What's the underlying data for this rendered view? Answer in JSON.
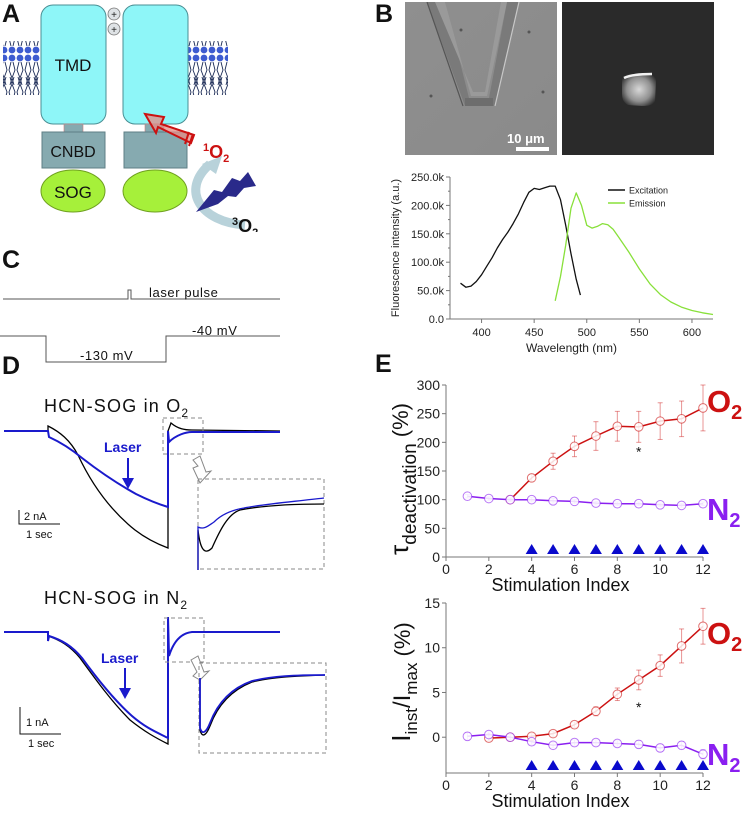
{
  "panels": {
    "A": {
      "letter": "A",
      "tmd_label": "TMD",
      "cnbd_label": "CNBD",
      "sog_label": "SOG",
      "plus_symbols": [
        "+",
        "+"
      ],
      "singlet_oxygen": {
        "sup": "1",
        "main": "O",
        "sub": "2"
      },
      "triplet_oxygen": {
        "sup": "3",
        "main": "O",
        "sub": "2"
      },
      "colors": {
        "tmd": "#8ef6f8",
        "cnbd": "#86aab0",
        "sog": "#a6f03a",
        "singlet": "#dd1111",
        "bolt": "#2a2a8a",
        "lipid": "#3d5bd0"
      }
    },
    "B": {
      "letter": "B",
      "scale_bar_label": "10 μm"
    },
    "C": {
      "letter": "C",
      "laser_label": "laser pulse",
      "hold_label": "-130 mV",
      "step_label": "-40 mV"
    },
    "D": {
      "letter": "D",
      "top": {
        "title": {
          "main": "HCN-SOG in O",
          "sub": "2"
        },
        "laser_label": "Laser",
        "scale_y": "2 nA",
        "scale_x": "1 sec"
      },
      "bottom": {
        "title": {
          "main": "HCN-SOG in N",
          "sub": "2"
        },
        "laser_label": "Laser",
        "scale_y": "1 nA",
        "scale_x": "1 sec"
      },
      "colors": {
        "control": "#000000",
        "laser": "#1a1acc"
      }
    },
    "E": {
      "letter": "E",
      "o2_label": {
        "main": "O",
        "sub": "2"
      },
      "n2_label": {
        "main": "N",
        "sub": "2"
      },
      "significance_mark": "*",
      "colors": {
        "o2": "#cc1111",
        "n2": "#8a1ff0",
        "stim": "#0a0acc"
      }
    }
  },
  "chart_data": [
    {
      "id": "B-spectrum",
      "type": "line",
      "title": "",
      "xlabel": "Wavelength (nm)",
      "ylabel": "Fluorescence intensity (a.u.)",
      "xlim": [
        370,
        620
      ],
      "ylim": [
        0,
        250000
      ],
      "xticks": [
        400,
        450,
        500,
        550,
        600
      ],
      "xtick_labels": [
        "400",
        "450",
        "500",
        "550",
        "600"
      ],
      "yticks": [
        0,
        50000,
        100000,
        150000,
        200000,
        250000
      ],
      "ytick_labels": [
        "0.0",
        "50.0k",
        "100.0k",
        "150.0k",
        "200.0k",
        "250.0k"
      ],
      "legend_position": "top-right",
      "series": [
        {
          "name": "Excitation",
          "color": "#111111",
          "x": [
            380,
            385,
            390,
            395,
            400,
            405,
            410,
            415,
            420,
            425,
            430,
            435,
            440,
            445,
            450,
            455,
            460,
            465,
            470,
            475,
            480,
            485,
            490,
            494
          ],
          "y": [
            63000,
            56000,
            58000,
            66000,
            78000,
            93000,
            108000,
            125000,
            140000,
            153000,
            168000,
            185000,
            205000,
            223000,
            230000,
            228000,
            231000,
            234000,
            234000,
            210000,
            165000,
            115000,
            70000,
            42000
          ]
        },
        {
          "name": "Emission",
          "color": "#88e03a",
          "x": [
            470,
            475,
            480,
            485,
            490,
            495,
            500,
            505,
            510,
            515,
            520,
            525,
            530,
            540,
            550,
            560,
            570,
            580,
            590,
            600,
            610,
            620
          ],
          "y": [
            32000,
            75000,
            130000,
            195000,
            222000,
            200000,
            165000,
            160000,
            163000,
            168000,
            166000,
            158000,
            145000,
            118000,
            88000,
            62000,
            43000,
            30000,
            21000,
            15000,
            11000,
            8000
          ]
        }
      ]
    },
    {
      "id": "E-tau",
      "type": "line",
      "title": "",
      "xlabel": "Stimulation Index",
      "ylabel": {
        "main": "τ",
        "sub": "deactivation",
        "unit": "(%)"
      },
      "xlim": [
        0,
        12
      ],
      "ylim": [
        0,
        300
      ],
      "xticks": [
        0,
        2,
        4,
        6,
        8,
        10,
        12
      ],
      "xtick_labels": [
        "0",
        "2",
        "4",
        "6",
        "8",
        "10",
        "12"
      ],
      "yticks": [
        0,
        50,
        100,
        150,
        200,
        250,
        300
      ],
      "ytick_labels": [
        "0",
        "50",
        "100",
        "150",
        "200",
        "250",
        "300"
      ],
      "stimulation_markers": [
        4,
        5,
        6,
        7,
        8,
        9,
        10,
        11,
        12
      ],
      "significance_at": 9,
      "series": [
        {
          "name": "O2",
          "color": "#cc1111",
          "x": [
            3,
            4,
            5,
            6,
            7,
            8,
            9,
            10,
            11,
            12
          ],
          "y": [
            100,
            138,
            167,
            193,
            211,
            228,
            227,
            237,
            241,
            260
          ],
          "err": [
            3,
            6,
            14,
            18,
            25,
            26,
            27,
            32,
            31,
            40
          ]
        },
        {
          "name": "N2",
          "color": "#8a1ff0",
          "x": [
            1,
            2,
            3,
            4,
            5,
            6,
            7,
            8,
            9,
            10,
            11,
            12
          ],
          "y": [
            106,
            102,
            100,
            100,
            98,
            97,
            94,
            93,
            93,
            91,
            90,
            93
          ],
          "err": [
            3,
            3,
            3,
            4,
            4,
            3,
            3,
            3,
            3,
            3,
            3,
            3
          ]
        }
      ]
    },
    {
      "id": "E-inst",
      "type": "line",
      "title": "",
      "xlabel": "Stimulation Index",
      "ylabel": {
        "main": "I",
        "sub1": "inst",
        "mid": "/I",
        "sub2": "max",
        "unit": " (%)"
      },
      "xlim": [
        0,
        12
      ],
      "ylim": [
        -4,
        15
      ],
      "xticks": [
        0,
        2,
        4,
        6,
        8,
        10,
        12
      ],
      "xtick_labels": [
        "0",
        "2",
        "4",
        "6",
        "8",
        "10",
        "12"
      ],
      "yticks": [
        0,
        5,
        10,
        15
      ],
      "ytick_labels": [
        "0",
        "5",
        "10",
        "15"
      ],
      "stimulation_markers": [
        4,
        5,
        6,
        7,
        8,
        9,
        10,
        11,
        12
      ],
      "significance_at": 9,
      "series": [
        {
          "name": "O2",
          "color": "#cc1111",
          "x": [
            2,
            3,
            4,
            5,
            6,
            7,
            8,
            9,
            10,
            11,
            12
          ],
          "y": [
            -0.1,
            0.0,
            0.1,
            0.4,
            1.4,
            2.9,
            4.8,
            6.4,
            8.0,
            10.2,
            12.4
          ],
          "err": [
            0.3,
            0.2,
            0.3,
            0.3,
            0.3,
            0.5,
            0.7,
            1.1,
            1.2,
            1.9,
            2.0
          ]
        },
        {
          "name": "N2",
          "color": "#8a1ff0",
          "x": [
            1,
            2,
            3,
            4,
            5,
            6,
            7,
            8,
            9,
            10,
            11,
            12
          ],
          "y": [
            0.1,
            0.3,
            0.0,
            -0.5,
            -0.9,
            -0.6,
            -0.6,
            -0.7,
            -0.8,
            -1.2,
            -0.9,
            -1.9
          ],
          "err": [
            0.4,
            0.3,
            0.3,
            0.3,
            0.3,
            0.3,
            0.3,
            0.3,
            0.4,
            0.4,
            0.4,
            0.5
          ]
        }
      ]
    }
  ]
}
